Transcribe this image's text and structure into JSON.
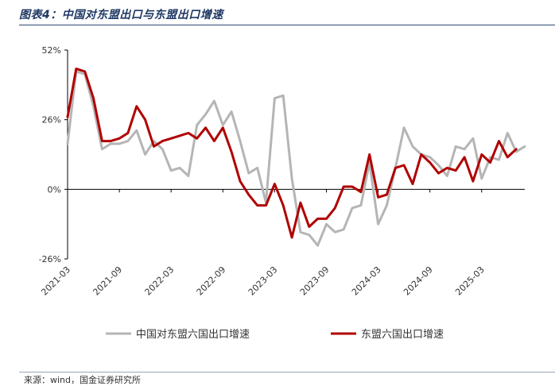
{
  "figure": {
    "title": "图表4：中国对东盟出口与东盟出口增速",
    "source": "来源：wind，国金证券研究所"
  },
  "chart_data": {
    "type": "line",
    "y_tick_labels": [
      "52%",
      "26%",
      "0%",
      "-26%"
    ],
    "y_ticks": [
      52,
      26,
      0,
      -26
    ],
    "ylim": [
      -26,
      52
    ],
    "x_tick_labels": [
      "2021-03",
      "2021-09",
      "2022-03",
      "2022-09",
      "2023-03",
      "2023-09",
      "2024-03",
      "2024-09",
      "2025-03"
    ],
    "x_tick_index": [
      0,
      6,
      12,
      18,
      24,
      30,
      36,
      42,
      48
    ],
    "grid": false,
    "legend_position": "bottom",
    "series": [
      {
        "name": "中国对东盟六国出口增速",
        "color": "#b5b5b5",
        "values": [
          17,
          44,
          43,
          31,
          15,
          17,
          17,
          18,
          22,
          13,
          18,
          15,
          7,
          8,
          5,
          24,
          28,
          33,
          24,
          29,
          18,
          6,
          8,
          -5,
          34,
          35,
          4,
          -16,
          -17,
          -21,
          -13,
          -16,
          -15,
          -7,
          -6,
          10,
          -13,
          -6,
          8,
          23,
          16,
          13,
          12,
          9,
          5,
          16,
          15,
          19,
          4,
          12,
          11,
          21,
          14,
          16
        ]
      },
      {
        "name": "东盟六国出口增速",
        "color": "#b00000",
        "values": [
          27,
          45,
          44,
          34,
          18,
          18,
          19,
          21,
          31,
          26,
          16,
          18,
          19,
          20,
          21,
          19,
          23,
          18,
          23,
          14,
          3,
          -2,
          -6,
          -6,
          2,
          -6,
          -18,
          -5,
          -14,
          -11,
          -11,
          -7,
          1,
          1,
          -1,
          13,
          -3,
          -2,
          8,
          9,
          2,
          13,
          10,
          6,
          8,
          7,
          12,
          3,
          13,
          10,
          18,
          12,
          15
        ]
      }
    ]
  }
}
